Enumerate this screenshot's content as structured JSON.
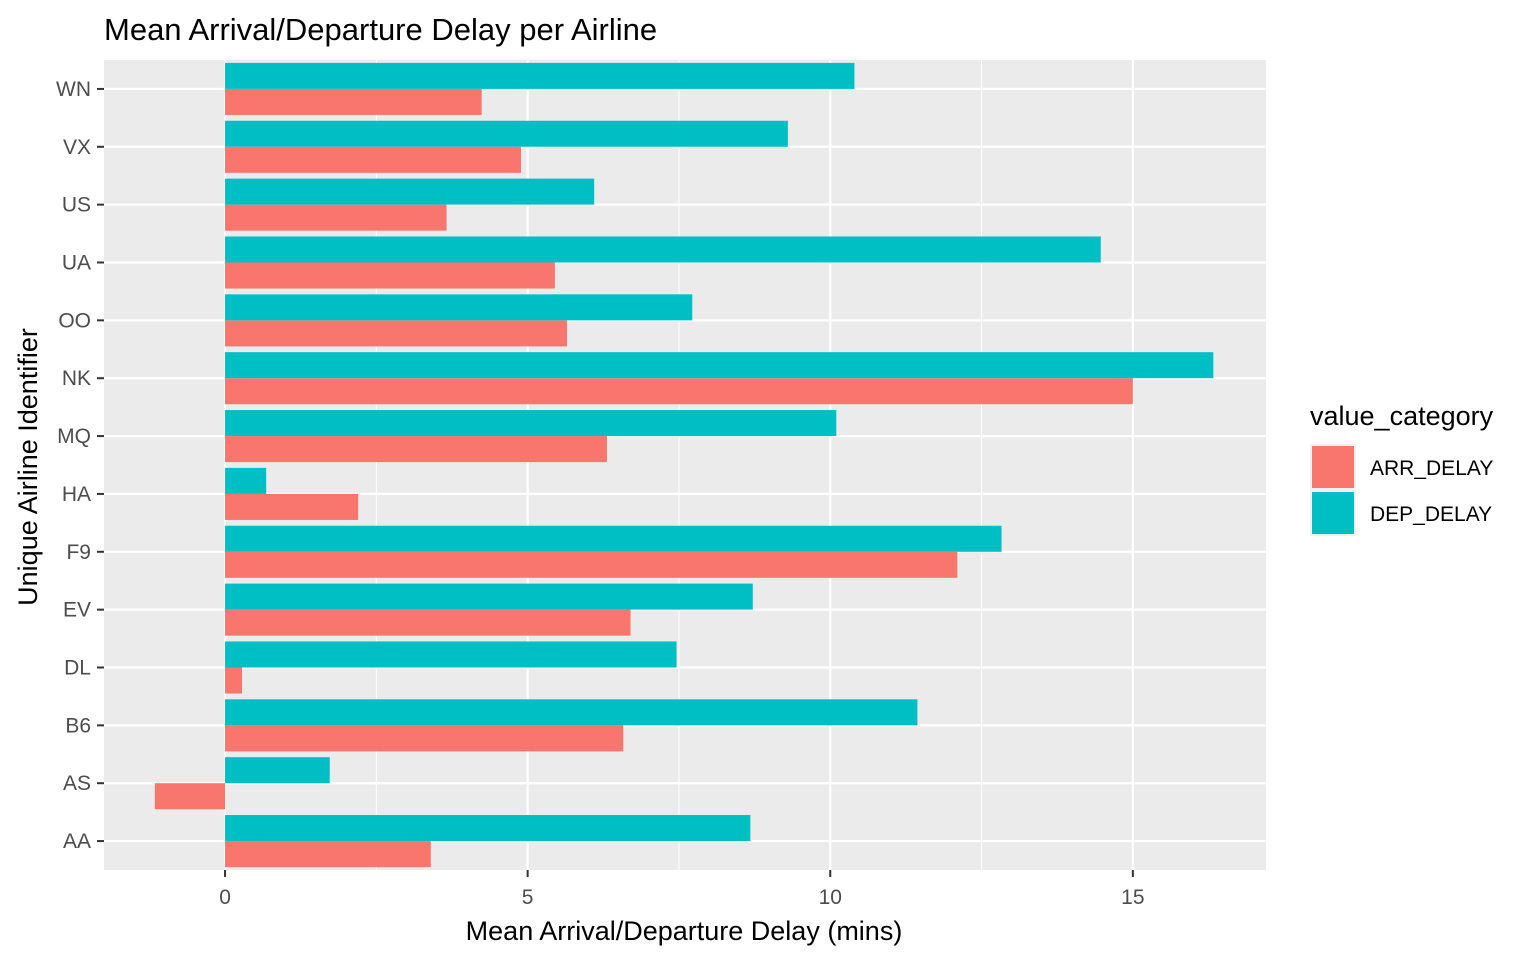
{
  "chart_data": {
    "type": "bar",
    "orientation": "horizontal",
    "title": "Mean Arrival/Departure Delay per Airline",
    "xlabel": "Mean Arrival/Departure Delay (mins)",
    "ylabel": "Unique Airline Identifier",
    "xlim": [
      -2,
      17.2
    ],
    "xticks": [
      0,
      5,
      10,
      15
    ],
    "grid": true,
    "legend": {
      "title": "value_category",
      "position": "right"
    },
    "categories": [
      "AA",
      "AS",
      "B6",
      "DL",
      "EV",
      "F9",
      "HA",
      "MQ",
      "NK",
      "OO",
      "UA",
      "US",
      "VX",
      "WN"
    ],
    "series": [
      {
        "name": "ARR_DELAY",
        "color": "#F8766D",
        "values": [
          3.4,
          -1.16,
          6.58,
          0.28,
          6.7,
          12.1,
          2.2,
          6.31,
          15.0,
          5.65,
          5.45,
          3.66,
          4.89,
          4.24
        ]
      },
      {
        "name": "DEP_DELAY",
        "color": "#00BFC4",
        "values": [
          8.68,
          1.73,
          11.44,
          7.46,
          8.72,
          12.83,
          0.68,
          10.1,
          16.33,
          7.72,
          14.47,
          6.1,
          9.3,
          10.4
        ]
      }
    ]
  }
}
